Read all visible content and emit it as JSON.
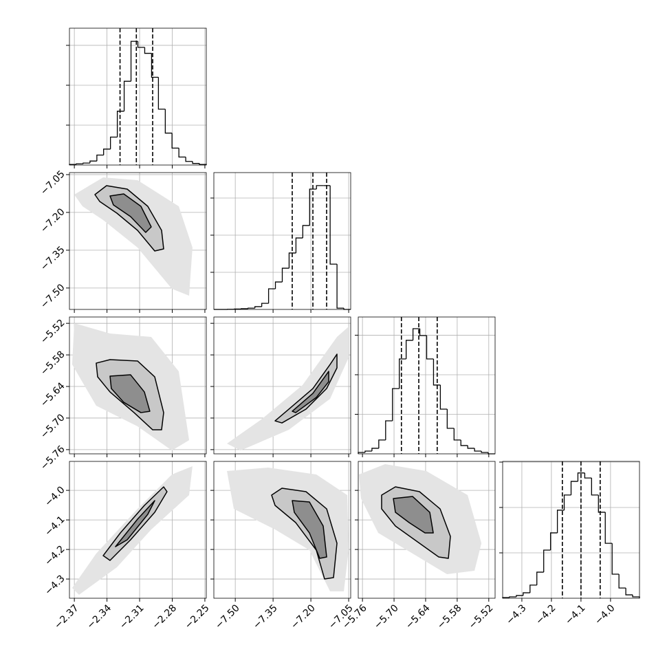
{
  "chart_data": {
    "type": "corner",
    "grid": true,
    "color": "#000000",
    "fill_colors": [
      "#e4e4e4",
      "#c8c8c8",
      "#8e8e8e"
    ],
    "params": [
      {
        "lim": [
          -2.3745,
          -2.2487
        ],
        "ticks": [
          {
            "value": -2.37,
            "label": "−2.37"
          },
          {
            "value": -2.34,
            "label": "−2.34"
          },
          {
            "value": -2.31,
            "label": "−2.31"
          },
          {
            "value": -2.28,
            "label": "−2.28"
          },
          {
            "value": -2.25,
            "label": "−2.25"
          }
        ]
      },
      {
        "lim": [
          -7.585,
          -7.042
        ],
        "ticks": [
          {
            "value": -7.5,
            "label": "−7.50"
          },
          {
            "value": -7.35,
            "label": "−7.35"
          },
          {
            "value": -7.2,
            "label": "−7.20"
          },
          {
            "value": -7.05,
            "label": "−7.05"
          }
        ]
      },
      {
        "lim": [
          -5.768,
          -5.508
        ],
        "ticks": [
          {
            "value": -5.76,
            "label": "−5.76"
          },
          {
            "value": -5.7,
            "label": "−5.70"
          },
          {
            "value": -5.64,
            "label": "−5.64"
          },
          {
            "value": -5.58,
            "label": "−5.58"
          },
          {
            "value": -5.52,
            "label": "−5.52"
          }
        ]
      },
      {
        "lim": [
          -4.365,
          -3.902
        ],
        "ticks": [
          {
            "value": -4.3,
            "label": "−4.3"
          },
          {
            "value": -4.2,
            "label": "−4.2"
          },
          {
            "value": -4.1,
            "label": "−4.1"
          },
          {
            "value": -4.0,
            "label": "−4.0"
          }
        ]
      }
    ],
    "histograms": [
      {
        "bins": [
          -2.3745,
          -2.3682,
          -2.3619,
          -2.3556,
          -2.3493,
          -2.3431,
          -2.3368,
          -2.3305,
          -2.3242,
          -2.3179,
          -2.3116,
          -2.3053,
          -2.299,
          -2.2927,
          -2.2864,
          -2.2802,
          -2.2739,
          -2.2676,
          -2.2613,
          -2.255,
          -2.2487
        ],
        "counts": [
          3,
          6,
          10,
          20,
          50,
          80,
          140,
          270,
          420,
          620,
          590,
          560,
          440,
          280,
          160,
          85,
          40,
          18,
          8,
          3
        ],
        "ylim": [
          0,
          686
        ],
        "yticks": [
          200,
          400,
          600
        ],
        "quantiles": [
          -2.328,
          -2.313,
          -2.298
        ]
      },
      {
        "bins": [
          -7.585,
          -7.5579,
          -7.5307,
          -7.5036,
          -7.4764,
          -7.4493,
          -7.4221,
          -7.395,
          -7.3678,
          -7.3407,
          -7.3135,
          -7.2864,
          -7.2592,
          -7.2321,
          -7.2049,
          -7.1778,
          -7.1506,
          -7.1235,
          -7.0963,
          -7.0692,
          -7.042
        ],
        "counts": [
          0,
          0,
          1,
          2,
          4,
          7,
          15,
          33,
          111,
          148,
          222,
          304,
          385,
          452,
          648,
          667,
          667,
          244,
          7,
          0
        ],
        "ylim": [
          0,
          737
        ],
        "yticks": [
          200,
          400,
          600
        ],
        "quantiles": [
          -7.274,
          -7.192,
          -7.1375
        ]
      },
      {
        "bins": [
          -5.768,
          -5.755,
          -5.742,
          -5.729,
          -5.716,
          -5.703,
          -5.69,
          -5.677,
          -5.664,
          -5.651,
          -5.638,
          -5.625,
          -5.612,
          -5.599,
          -5.586,
          -5.573,
          -5.56,
          -5.547,
          -5.534,
          -5.521,
          -5.508
        ],
        "counts": [
          7,
          14,
          28,
          70,
          167,
          330,
          480,
          574,
          633,
          598,
          480,
          348,
          226,
          129,
          70,
          42,
          28,
          14,
          7,
          0
        ],
        "ylim": [
          0,
          692
        ],
        "yticks": [
          200,
          400,
          600
        ],
        "quantiles": [
          -5.686,
          -5.653,
          -5.618
        ]
      },
      {
        "bins": [
          -4.365,
          -4.3419,
          -4.3187,
          -4.2956,
          -4.2724,
          -4.2493,
          -4.2261,
          -4.203,
          -4.1798,
          -4.1567,
          -4.1335,
          -4.1104,
          -4.0872,
          -4.0641,
          -4.0409,
          -4.0178,
          -3.9946,
          -3.9715,
          -3.9483,
          -3.9252,
          -3.902
        ],
        "counts": [
          3,
          6,
          12,
          24,
          58,
          115,
          212,
          288,
          388,
          455,
          515,
          552,
          530,
          455,
          379,
          242,
          106,
          45,
          15,
          6
        ],
        "ylim": [
          0,
          603
        ],
        "yticks": [
          200,
          400,
          600
        ],
        "quantiles": [
          -4.163,
          -4.1,
          -4.035
        ]
      }
    ],
    "pairs": [
      {
        "cloud": {
          "x": [
            -2.3701,
            -2.3435,
            -2.3119,
            -2.274,
            -2.2614,
            -2.2645,
            -2.2803,
            -2.3119,
            -2.3435,
            -2.3625
          ],
          "y": [
            -7.1293,
            -7.0611,
            -7.072,
            -7.1757,
            -7.3395,
            -7.5305,
            -7.5032,
            -7.3395,
            -7.2303,
            -7.1757
          ]
        },
        "contours": [
          {
            "x": [
              -2.3511,
              -2.3404,
              -2.3214,
              -2.3025,
              -2.2898,
              -2.2879,
              -2.2961,
              -2.3119,
              -2.3309,
              -2.3467
            ],
            "y": [
              -7.1293,
              -7.0939,
              -7.1075,
              -7.1757,
              -7.2712,
              -7.3449,
              -7.3531,
              -7.2712,
              -7.203,
              -7.1566
            ]
          },
          {
            "x": [
              -2.3372,
              -2.3246,
              -2.3088,
              -2.2993,
              -2.3044,
              -2.3183,
              -2.3341
            ],
            "y": [
              -7.1348,
              -7.1266,
              -7.1757,
              -7.2576,
              -7.2794,
              -7.2167,
              -7.1703
            ]
          }
        ]
      },
      {
        "cloud": {
          "x": [
            -2.3701,
            -2.3372,
            -2.2993,
            -2.274,
            -2.2645,
            -2.2803,
            -2.3119,
            -2.3499,
            -2.372
          ],
          "y": [
            -5.5198,
            -5.5394,
            -5.5459,
            -5.6113,
            -5.742,
            -5.7616,
            -5.7158,
            -5.6766,
            -5.5982
          ]
        },
        "contours": [
          {
            "x": [
              -2.3499,
              -2.3372,
              -2.3119,
              -2.2961,
              -2.2879,
              -2.2898,
              -2.298,
              -2.3151,
              -2.3372,
              -2.3486
            ],
            "y": [
              -5.5956,
              -5.589,
              -5.5916,
              -5.6217,
              -5.6897,
              -5.7223,
              -5.7223,
              -5.6897,
              -5.6505,
              -5.6217
            ]
          },
          {
            "x": [
              -2.3372,
              -2.3183,
              -2.3056,
              -2.3006,
              -2.3088,
              -2.3246,
              -2.336
            ],
            "y": [
              -5.6204,
              -5.6178,
              -5.6505,
              -5.6871,
              -5.6897,
              -5.6701,
              -5.6439
            ]
          }
        ]
      },
      {
        "cloud": {
          "x": [
            -7.5331,
            -7.3967,
            -7.233,
            -7.0965,
            -7.0501,
            -7.0501,
            -7.1238,
            -7.2875,
            -7.4786
          ],
          "y": [
            -5.7485,
            -5.7027,
            -5.6374,
            -5.5459,
            -5.5263,
            -5.5851,
            -5.6635,
            -5.7223,
            -5.7616
          ]
        },
        "contours": [
          {
            "x": [
              -7.3421,
              -7.2875,
              -7.192,
              -7.1238,
              -7.0965,
              -7.0965,
              -7.1374,
              -7.2193,
              -7.3148
            ],
            "y": [
              -5.7054,
              -5.6831,
              -5.6439,
              -5.5982,
              -5.5786,
              -5.6047,
              -5.6439,
              -5.6831,
              -5.7093
            ]
          },
          {
            "x": [
              -7.2739,
              -7.192,
              -7.1293,
              -7.1293,
              -7.1784,
              -7.2602
            ],
            "y": [
              -5.6871,
              -5.6531,
              -5.6113,
              -5.6309,
              -5.6609,
              -5.6897
            ]
          }
        ]
      },
      {
        "cloud": {
          "x": [
            -2.372,
            -2.3499,
            -2.3119,
            -2.2803,
            -2.2614,
            -2.2645,
            -2.2993,
            -2.3309,
            -2.3657
          ],
          "y": [
            -4.3302,
            -4.2138,
            -4.0626,
            -3.9462,
            -3.9183,
            -4.016,
            -4.1324,
            -4.2604,
            -4.3534
          ]
        },
        "contours": [
          {
            "x": [
              -2.3435,
              -2.3277,
              -2.3056,
              -2.2879,
              -2.2848,
              -2.2961,
              -2.3183,
              -2.3372
            ],
            "y": [
              -4.2208,
              -4.144,
              -4.0509,
              -3.9881,
              -4.0044,
              -4.0742,
              -4.1673,
              -4.2371
            ]
          },
          {
            "x": [
              -2.3322,
              -2.3119,
              -2.2961,
              -2.3025,
              -2.3214
            ],
            "y": [
              -4.1905,
              -4.0975,
              -4.0346,
              -4.0812,
              -4.1673
            ]
          }
        ]
      },
      {
        "cloud": {
          "x": [
            -7.5331,
            -7.3694,
            -7.1784,
            -7.0556,
            -7.0501,
            -7.0692,
            -7.1238,
            -7.2057,
            -7.3421,
            -7.5059
          ],
          "y": [
            -3.9346,
            -3.9229,
            -3.9462,
            -4.016,
            -4.2022,
            -4.3418,
            -4.3418,
            -4.2022,
            -4.1324,
            -4.0626
          ]
        },
        "contours": [
          {
            "x": [
              -7.3558,
              -7.3148,
              -7.2193,
              -7.1374,
              -7.0965,
              -7.1102,
              -7.1456,
              -7.1784,
              -7.2602,
              -7.3421
            ],
            "y": [
              -4.016,
              -3.9928,
              -4.0044,
              -4.0626,
              -4.1789,
              -4.2953,
              -4.2999,
              -4.2022,
              -4.1091,
              -4.0509
            ]
          },
          {
            "x": [
              -7.2739,
              -7.2057,
              -7.1511,
              -7.1374,
              -7.1647,
              -7.2057,
              -7.2657
            ],
            "y": [
              -4.0346,
              -4.0393,
              -4.1207,
              -4.2255,
              -4.2301,
              -4.144,
              -4.0742
            ]
          }
        ]
      },
      {
        "cloud": {
          "x": [
            -5.7667,
            -5.717,
            -5.6386,
            -5.5602,
            -5.534,
            -5.5471,
            -5.5994,
            -5.6647,
            -5.7301,
            -5.7628
          ],
          "y": [
            -3.9462,
            -3.9113,
            -3.9346,
            -4.016,
            -4.1789,
            -4.272,
            -4.2836,
            -4.2138,
            -4.144,
            -4.0277
          ]
        },
        "contours": [
          {
            "x": [
              -5.7236,
              -5.6974,
              -5.6517,
              -5.6125,
              -5.5929,
              -5.5968,
              -5.6151,
              -5.6517,
              -5.6974,
              -5.7236
            ],
            "y": [
              -4.016,
              -3.9881,
              -4.0044,
              -4.0626,
              -4.1556,
              -4.2301,
              -4.2255,
              -4.1789,
              -4.1207,
              -4.0626
            ]
          },
          {
            "x": [
              -5.7013,
              -5.6647,
              -5.6321,
              -5.6255,
              -5.6412,
              -5.6713,
              -5.6974
            ],
            "y": [
              -4.0277,
              -4.0207,
              -4.0742,
              -4.144,
              -4.144,
              -4.1091,
              -4.0742
            ]
          }
        ]
      }
    ]
  }
}
